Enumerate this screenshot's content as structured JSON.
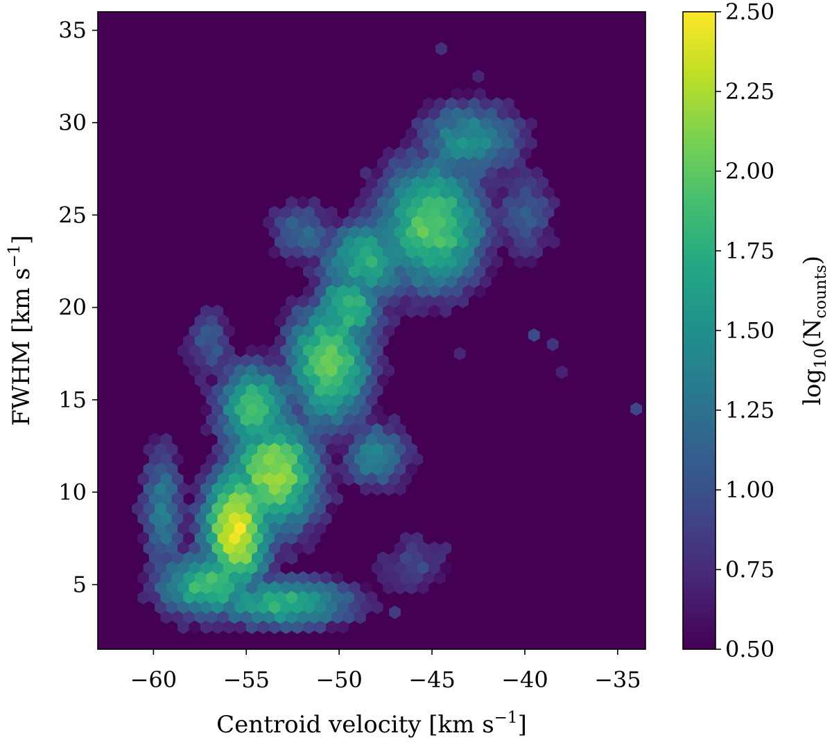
{
  "chart_data": {
    "type": "heatmap",
    "subtype": "hexbin",
    "title": "",
    "xlabel": "Centroid velocity [km s^-1]",
    "ylabel": "FWHM [km s^-1]",
    "xlim": [
      -63,
      -33.5
    ],
    "ylim": [
      1.5,
      36
    ],
    "x_ticks": [
      -60,
      -55,
      -50,
      -45,
      -40,
      -35
    ],
    "x_tick_labels": [
      "−60",
      "−55",
      "−50",
      "−45",
      "−40",
      "−35"
    ],
    "y_ticks": [
      5,
      10,
      15,
      20,
      25,
      30,
      35
    ],
    "y_tick_labels": [
      "5",
      "10",
      "15",
      "20",
      "25",
      "30",
      "35"
    ],
    "colorbar": {
      "label": "log10(N_counts)",
      "colormap": "viridis",
      "range": [
        0.5,
        2.5
      ],
      "ticks": [
        0.5,
        0.75,
        1.0,
        1.25,
        1.5,
        1.75,
        2.0,
        2.25,
        2.5
      ],
      "tick_labels": [
        "0.50",
        "0.75",
        "1.00",
        "1.25",
        "1.50",
        "1.75",
        "2.00",
        "2.25",
        "2.50"
      ]
    },
    "background_value": 0.5,
    "density_components": [
      {
        "center": [
          -55.5,
          8.0
        ],
        "sigma": [
          1.6,
          3.0
        ],
        "rotation_deg": 0,
        "peak": 2.45
      },
      {
        "center": [
          -53.5,
          11.0
        ],
        "sigma": [
          2.2,
          2.8
        ],
        "rotation_deg": 0,
        "peak": 2.2
      },
      {
        "center": [
          -57.0,
          5.0
        ],
        "sigma": [
          2.5,
          1.6
        ],
        "rotation_deg": 0,
        "peak": 1.9
      },
      {
        "center": [
          -53.0,
          4.0
        ],
        "sigma": [
          3.5,
          1.2
        ],
        "rotation_deg": 0,
        "peak": 1.8
      },
      {
        "center": [
          -50.5,
          17.0
        ],
        "sigma": [
          2.0,
          3.0
        ],
        "rotation_deg": 0,
        "peak": 2.05
      },
      {
        "center": [
          -49.5,
          20.0
        ],
        "sigma": [
          1.6,
          2.0
        ],
        "rotation_deg": 0,
        "peak": 1.85
      },
      {
        "center": [
          -54.5,
          14.5
        ],
        "sigma": [
          1.8,
          2.2
        ],
        "rotation_deg": 0,
        "peak": 1.9
      },
      {
        "center": [
          -45.0,
          24.5
        ],
        "sigma": [
          2.6,
          3.2
        ],
        "rotation_deg": 0,
        "peak": 2.0
      },
      {
        "center": [
          -43.0,
          29.0
        ],
        "sigma": [
          2.6,
          2.0
        ],
        "rotation_deg": 0,
        "peak": 1.5
      },
      {
        "center": [
          -48.5,
          22.5
        ],
        "sigma": [
          2.2,
          2.0
        ],
        "rotation_deg": 0,
        "peak": 1.75
      },
      {
        "center": [
          -59.5,
          9.0
        ],
        "sigma": [
          1.0,
          3.5
        ],
        "rotation_deg": 0,
        "peak": 1.35
      },
      {
        "center": [
          -52.0,
          24.0
        ],
        "sigma": [
          1.6,
          1.5
        ],
        "rotation_deg": 0,
        "peak": 1.2
      },
      {
        "center": [
          -46.0,
          6.0
        ],
        "sigma": [
          2.0,
          1.5
        ],
        "rotation_deg": 0,
        "peak": 0.95
      },
      {
        "center": [
          -40.0,
          25.0
        ],
        "sigma": [
          1.5,
          2.5
        ],
        "rotation_deg": 0,
        "peak": 1.1
      },
      {
        "center": [
          -48.0,
          12.0
        ],
        "sigma": [
          1.6,
          1.6
        ],
        "rotation_deg": 0,
        "peak": 1.45
      },
      {
        "center": [
          -57.0,
          18.0
        ],
        "sigma": [
          1.3,
          2.0
        ],
        "rotation_deg": 0,
        "peak": 1.05
      }
    ],
    "isolated_bins": [
      {
        "x": -34.0,
        "y": 14.5,
        "value": 0.92
      },
      {
        "x": -39.5,
        "y": 18.5,
        "value": 0.95
      },
      {
        "x": -38.5,
        "y": 18.0,
        "value": 0.8
      },
      {
        "x": -38.0,
        "y": 16.5,
        "value": 0.7
      },
      {
        "x": -44.5,
        "y": 34.0,
        "value": 0.78
      },
      {
        "x": -42.5,
        "y": 32.5,
        "value": 0.72
      },
      {
        "x": -43.5,
        "y": 17.5,
        "value": 0.72
      },
      {
        "x": -47.0,
        "y": 3.5,
        "value": 0.85
      }
    ]
  }
}
